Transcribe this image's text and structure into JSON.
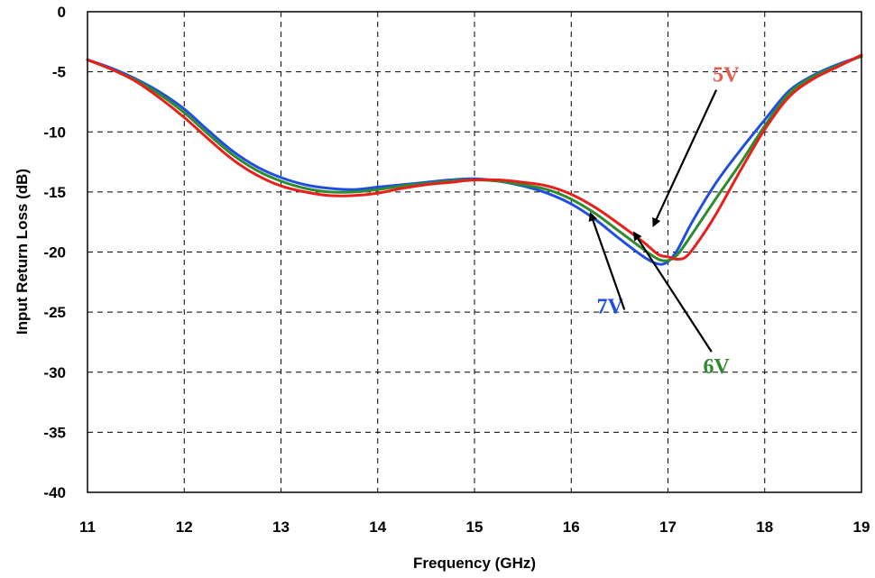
{
  "chart_data": {
    "type": "line",
    "title": "",
    "xlabel": "Frequency (GHz)",
    "ylabel": "Input Return Loss (dB)",
    "xlim": [
      11,
      19
    ],
    "ylim": [
      -40,
      0
    ],
    "xticks": [
      "11",
      "12",
      "13",
      "14",
      "15",
      "16",
      "17",
      "18",
      "19"
    ],
    "yticks": [
      "0",
      "-5",
      "-10",
      "-15",
      "-20",
      "-25",
      "-30",
      "-35",
      "-40"
    ],
    "grid": true,
    "series": [
      {
        "name": "5V",
        "color": "#e8201c",
        "x": [
          11,
          11.25,
          11.5,
          11.75,
          12,
          12.25,
          12.5,
          12.75,
          13,
          13.25,
          13.5,
          13.75,
          14,
          14.25,
          14.5,
          14.75,
          15,
          15.25,
          15.5,
          15.75,
          16,
          16.25,
          16.5,
          16.75,
          16.9,
          17,
          17.1,
          17.2,
          17.35,
          17.5,
          17.75,
          18,
          18.25,
          18.5,
          18.75,
          19
        ],
        "y": [
          -4,
          -4.8,
          -5.8,
          -7.2,
          -8.8,
          -10.6,
          -12.3,
          -13.6,
          -14.5,
          -15,
          -15.3,
          -15.3,
          -15.1,
          -14.7,
          -14.4,
          -14.2,
          -14,
          -14,
          -14.2,
          -14.5,
          -15.2,
          -16.3,
          -17.7,
          -19.2,
          -20.2,
          -20.4,
          -20.6,
          -20.3,
          -18.7,
          -16.8,
          -13.2,
          -9.8,
          -7.1,
          -5.6,
          -4.6,
          -3.6
        ]
      },
      {
        "name": "6V",
        "color": "#2e8b2e",
        "x": [
          11,
          11.25,
          11.5,
          11.75,
          12,
          12.25,
          12.5,
          12.75,
          13,
          13.25,
          13.5,
          13.75,
          14,
          14.25,
          14.5,
          14.75,
          15,
          15.25,
          15.5,
          15.75,
          16,
          16.25,
          16.5,
          16.75,
          16.9,
          17,
          17.1,
          17.25,
          17.5,
          17.75,
          18,
          18.25,
          18.5,
          18.75,
          19
        ],
        "y": [
          -4,
          -4.8,
          -5.7,
          -6.9,
          -8.4,
          -10.2,
          -11.9,
          -13.2,
          -14.1,
          -14.7,
          -15,
          -15,
          -14.8,
          -14.5,
          -14.3,
          -14.1,
          -14,
          -14.1,
          -14.4,
          -14.8,
          -15.6,
          -16.8,
          -18.3,
          -19.8,
          -20.6,
          -20.7,
          -20.2,
          -18.5,
          -15.5,
          -12.6,
          -9.5,
          -6.8,
          -5.4,
          -4.5,
          -3.7
        ]
      },
      {
        "name": "7V",
        "color": "#1f4ee0",
        "x": [
          11,
          11.25,
          11.5,
          11.75,
          12,
          12.25,
          12.5,
          12.75,
          13,
          13.25,
          13.5,
          13.75,
          14,
          14.25,
          14.5,
          14.75,
          15,
          15.25,
          15.5,
          15.75,
          16,
          16.25,
          16.5,
          16.75,
          16.9,
          17,
          17.1,
          17.25,
          17.5,
          17.75,
          18,
          18.25,
          18.5,
          18.75,
          19
        ],
        "y": [
          -4,
          -4.7,
          -5.6,
          -6.7,
          -8.1,
          -9.9,
          -11.6,
          -12.9,
          -13.8,
          -14.4,
          -14.7,
          -14.8,
          -14.6,
          -14.4,
          -14.2,
          -14,
          -13.9,
          -14.1,
          -14.5,
          -15.1,
          -16,
          -17.3,
          -18.9,
          -20.4,
          -21,
          -20.8,
          -19.8,
          -17.5,
          -14.2,
          -11.5,
          -9,
          -6.6,
          -5.3,
          -4.4,
          -3.7
        ]
      }
    ],
    "annotations": [
      {
        "text": "5V",
        "color": "#e85c50",
        "at": [
          17.6,
          -5.2
        ],
        "arrow_from": [
          17.5,
          -6.5
        ],
        "arrow_to": [
          16.85,
          -17.8
        ]
      },
      {
        "text": "6V",
        "color": "#2e8b2e",
        "at": [
          17.5,
          -29.5
        ],
        "arrow_from": [
          17.45,
          -28.3
        ],
        "arrow_to": [
          16.65,
          -18.4
        ]
      },
      {
        "text": "7V",
        "color": "#1f4ee0",
        "at": [
          16.4,
          -24.5
        ],
        "arrow_from": [
          16.55,
          -24.8
        ],
        "arrow_to": [
          16.2,
          -16.8
        ]
      }
    ]
  }
}
